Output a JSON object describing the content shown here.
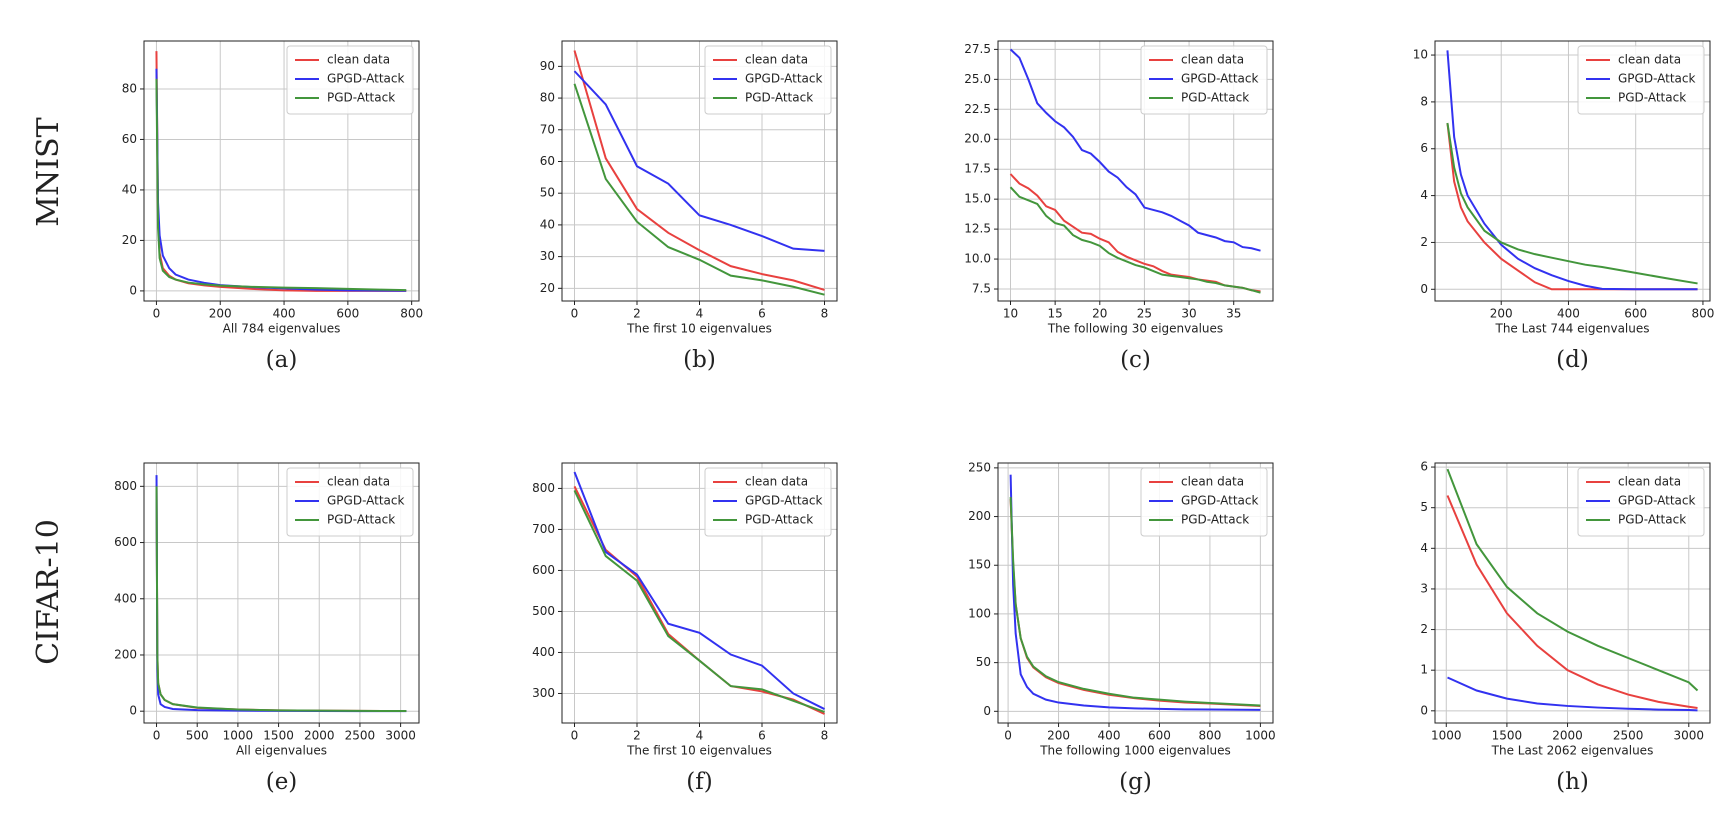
{
  "row_labels": [
    "MNIST",
    "CIFAR-10"
  ],
  "chart_data": [
    {
      "type": "line",
      "caption": "(a)",
      "xlabel": "All 784 eigenvalues",
      "grid": true,
      "legend": "upper right",
      "x": [
        0,
        5,
        10,
        20,
        40,
        60,
        100,
        150,
        200,
        300,
        400,
        500,
        600,
        700,
        783
      ],
      "xlim": [
        -39,
        823
      ],
      "xticks": [
        0,
        200,
        400,
        600,
        800
      ],
      "ylim": [
        -4,
        99
      ],
      "yticks": [
        0,
        20,
        40,
        60,
        80
      ],
      "series": [
        {
          "name": "clean data",
          "color": "#e8413f",
          "values": [
            95,
            30,
            15,
            9,
            6,
            4.5,
            3,
            2.2,
            1.6,
            0.8,
            0.2,
            0,
            0,
            0,
            0
          ]
        },
        {
          "name": "GPGD-Attack",
          "color": "#3232f0",
          "values": [
            88,
            35,
            22,
            14,
            9,
            6.5,
            4.5,
            3.2,
            2.3,
            1.5,
            1,
            0.5,
            0.2,
            0.1,
            0.05
          ]
        },
        {
          "name": "PGD-Attack",
          "color": "#43963c",
          "values": [
            84,
            25,
            13,
            8,
            5.5,
            4.5,
            3.3,
            2.6,
            2.1,
            1.6,
            1.3,
            1.1,
            0.8,
            0.5,
            0.3
          ]
        }
      ]
    },
    {
      "type": "line",
      "caption": "(b)",
      "xlabel": "The first 10 eigenvalues",
      "grid": true,
      "legend": "upper right",
      "x": [
        0,
        1,
        2,
        3,
        4,
        5,
        6,
        7,
        8
      ],
      "xlim": [
        -0.4,
        8.4
      ],
      "xticks": [
        0,
        2,
        4,
        6,
        8
      ],
      "ylim": [
        16,
        98
      ],
      "yticks": [
        20,
        30,
        40,
        50,
        60,
        70,
        80,
        90
      ],
      "series": [
        {
          "name": "clean data",
          "color": "#e8413f",
          "values": [
            95,
            61,
            45,
            37.5,
            32,
            27,
            24.5,
            22.5,
            19.5
          ]
        },
        {
          "name": "GPGD-Attack",
          "color": "#3232f0",
          "values": [
            88.5,
            78,
            58.5,
            53,
            43,
            40,
            36.5,
            32.5,
            31.8
          ]
        },
        {
          "name": "PGD-Attack",
          "color": "#43963c",
          "values": [
            84.5,
            54.5,
            41,
            33,
            29,
            24,
            22.5,
            20.5,
            18
          ]
        }
      ]
    },
    {
      "type": "line",
      "caption": "(c)",
      "xlabel": "The following 30 eigenvalues",
      "grid": true,
      "legend": "upper right",
      "x": [
        10,
        11,
        12,
        13,
        14,
        15,
        16,
        17,
        18,
        19,
        20,
        21,
        22,
        23,
        24,
        25,
        26,
        27,
        28,
        29,
        30,
        31,
        32,
        33,
        34,
        35,
        36,
        37,
        38
      ],
      "xlim": [
        8.6,
        39.4
      ],
      "xticks": [
        10,
        15,
        20,
        25,
        30,
        35
      ],
      "ylim": [
        6.5,
        28.2
      ],
      "yticks": [
        7.5,
        {
          "value": 10,
          "label": "10.0"
        },
        12.5,
        {
          "value": 15,
          "label": "15.0"
        },
        17.5,
        {
          "value": 20,
          "label": "20.0"
        },
        22.5,
        {
          "value": 25,
          "label": "25.0"
        },
        27.5
      ],
      "series": [
        {
          "name": "clean data",
          "color": "#e8413f",
          "values": [
            17.1,
            16.3,
            15.9,
            15.3,
            14.4,
            14.1,
            13.2,
            12.7,
            12.2,
            12.1,
            11.7,
            11.4,
            10.6,
            10.2,
            9.9,
            9.6,
            9.4,
            9,
            8.7,
            8.6,
            8.5,
            8.3,
            8.2,
            8.1,
            7.8,
            7.7,
            7.6,
            7.4,
            7.3
          ]
        },
        {
          "name": "GPGD-Attack",
          "color": "#3232f0",
          "values": [
            27.5,
            26.8,
            25,
            23,
            22.2,
            21.5,
            21,
            20.2,
            19.1,
            18.8,
            18.1,
            17.3,
            16.8,
            16,
            15.4,
            14.3,
            14.1,
            13.9,
            13.6,
            13.2,
            12.8,
            12.2,
            12,
            11.8,
            11.5,
            11.4,
            11,
            10.9,
            10.7
          ]
        },
        {
          "name": "PGD-Attack",
          "color": "#43963c",
          "values": [
            16,
            15.2,
            14.9,
            14.6,
            13.6,
            13,
            12.8,
            12,
            11.6,
            11.4,
            11.1,
            10.5,
            10.1,
            9.8,
            9.5,
            9.3,
            9,
            8.7,
            8.6,
            8.5,
            8.4,
            8.3,
            8.1,
            8,
            7.8,
            7.7,
            7.6,
            7.4,
            7.2
          ]
        }
      ]
    },
    {
      "type": "line",
      "caption": "(d)",
      "xlabel": "The Last 744 eigenvalues",
      "grid": true,
      "legend": "upper right",
      "x": [
        40,
        60,
        80,
        100,
        150,
        200,
        250,
        300,
        350,
        400,
        450,
        500,
        600,
        700,
        784
      ],
      "xlim": [
        3,
        821
      ],
      "xticks": [
        200,
        400,
        600,
        800
      ],
      "ylim": [
        -0.5,
        10.6
      ],
      "yticks": [
        0,
        2,
        4,
        6,
        8,
        10
      ],
      "series": [
        {
          "name": "clean data",
          "color": "#e8413f",
          "values": [
            7.1,
            4.6,
            3.5,
            2.9,
            2.0,
            1.3,
            0.8,
            0.3,
            0,
            0,
            0,
            0,
            0,
            0,
            0
          ]
        },
        {
          "name": "GPGD-Attack",
          "color": "#3232f0",
          "values": [
            10.2,
            6.5,
            4.9,
            4,
            2.8,
            1.9,
            1.3,
            0.9,
            0.6,
            0.35,
            0.15,
            0.02,
            0,
            0,
            0
          ]
        },
        {
          "name": "PGD-Attack",
          "color": "#43963c",
          "values": [
            7.1,
            5.2,
            4.1,
            3.5,
            2.5,
            2,
            1.7,
            1.5,
            1.35,
            1.2,
            1.05,
            0.95,
            0.7,
            0.45,
            0.25
          ]
        }
      ]
    },
    {
      "type": "line",
      "caption": "(e)",
      "xlabel": "All eigenvalues",
      "grid": true,
      "legend": "upper right",
      "x": [
        0,
        10,
        20,
        50,
        100,
        200,
        500,
        1000,
        1500,
        2000,
        2500,
        3071
      ],
      "xlim": [
        -154,
        3226
      ],
      "xticks": [
        0,
        500,
        1000,
        1500,
        2000,
        2500,
        3000
      ],
      "ylim": [
        -42,
        883
      ],
      "yticks": [
        0,
        200,
        400,
        600,
        800
      ],
      "series": [
        {
          "name": "clean data",
          "color": "#e8413f",
          "values": [
            805,
            200,
            100,
            60,
            40,
            25,
            12,
            6,
            3,
            2,
            1,
            0.5
          ]
        },
        {
          "name": "GPGD-Attack",
          "color": "#3232f0",
          "values": [
            840,
            150,
            60,
            25,
            15,
            8,
            4,
            2,
            1,
            0.5,
            0.3,
            0.1
          ]
        },
        {
          "name": "PGD-Attack",
          "color": "#43963c",
          "values": [
            800,
            200,
            100,
            60,
            40,
            25,
            13,
            6,
            3,
            2,
            1,
            0.5
          ]
        }
      ]
    },
    {
      "type": "line",
      "caption": "(f)",
      "xlabel": "The first 10 eigenvalues",
      "grid": true,
      "legend": "upper right",
      "x": [
        0,
        1,
        2,
        3,
        4,
        5,
        6,
        7,
        8
      ],
      "xlim": [
        -0.4,
        8.4
      ],
      "xticks": [
        0,
        2,
        4,
        6,
        8
      ],
      "ylim": [
        228,
        862
      ],
      "yticks": [
        300,
        400,
        500,
        600,
        700,
        800
      ],
      "series": [
        {
          "name": "clean data",
          "color": "#e8413f",
          "values": [
            805,
            650,
            585,
            445,
            380,
            318,
            305,
            285,
            250
          ]
        },
        {
          "name": "GPGD-Attack",
          "color": "#3232f0",
          "values": [
            840,
            645,
            590,
            470,
            448,
            395,
            368,
            300,
            262
          ]
        },
        {
          "name": "PGD-Attack",
          "color": "#43963c",
          "values": [
            795,
            635,
            575,
            440,
            380,
            318,
            310,
            282,
            255
          ]
        }
      ]
    },
    {
      "type": "line",
      "caption": "(g)",
      "xlabel": "The following 1000 eigenvalues",
      "grid": true,
      "legend": "upper right",
      "x": [
        10,
        20,
        30,
        50,
        75,
        100,
        150,
        200,
        300,
        400,
        500,
        600,
        700,
        800,
        1000
      ],
      "xlim": [
        -40,
        1050
      ],
      "xticks": [
        0,
        200,
        400,
        600,
        800,
        1000
      ],
      "ylim": [
        -12,
        255
      ],
      "yticks": [
        0,
        50,
        100,
        150,
        200,
        250
      ],
      "series": [
        {
          "name": "clean data",
          "color": "#e8413f",
          "values": [
            218,
            150,
            110,
            75,
            55,
            45,
            35,
            29,
            22,
            17,
            13.5,
            11,
            9,
            8,
            5.5
          ]
        },
        {
          "name": "GPGD-Attack",
          "color": "#3232f0",
          "values": [
            243,
            130,
            80,
            38,
            25,
            18,
            12,
            9,
            6,
            4,
            3,
            2.5,
            2,
            1.8,
            1.5
          ]
        },
        {
          "name": "PGD-Attack",
          "color": "#43963c",
          "values": [
            220,
            155,
            110,
            75,
            56,
            46,
            36,
            30,
            23,
            18,
            14,
            12,
            10,
            8.5,
            6
          ]
        }
      ]
    },
    {
      "type": "line",
      "caption": "(h)",
      "xlabel": "The Last 2062 eigenvalues",
      "grid": true,
      "legend": "upper right",
      "x": [
        1010,
        1250,
        1500,
        1750,
        2000,
        2250,
        2500,
        2750,
        3000,
        3072
      ],
      "xlim": [
        907,
        3175
      ],
      "xticks": [
        1000,
        1500,
        2000,
        2500,
        3000
      ],
      "ylim": [
        -0.3,
        6.1
      ],
      "yticks": [
        0,
        1,
        2,
        3,
        4,
        5,
        6
      ],
      "series": [
        {
          "name": "clean data",
          "color": "#e8413f",
          "values": [
            5.3,
            3.6,
            2.4,
            1.6,
            1.0,
            0.65,
            0.4,
            0.22,
            0.1,
            0.07
          ]
        },
        {
          "name": "GPGD-Attack",
          "color": "#3232f0",
          "values": [
            0.82,
            0.5,
            0.3,
            0.18,
            0.12,
            0.08,
            0.05,
            0.03,
            0.02,
            0.01
          ]
        },
        {
          "name": "PGD-Attack",
          "color": "#43963c",
          "values": [
            5.95,
            4.1,
            3.05,
            2.4,
            1.95,
            1.6,
            1.3,
            1.0,
            0.7,
            0.5
          ]
        }
      ]
    }
  ]
}
